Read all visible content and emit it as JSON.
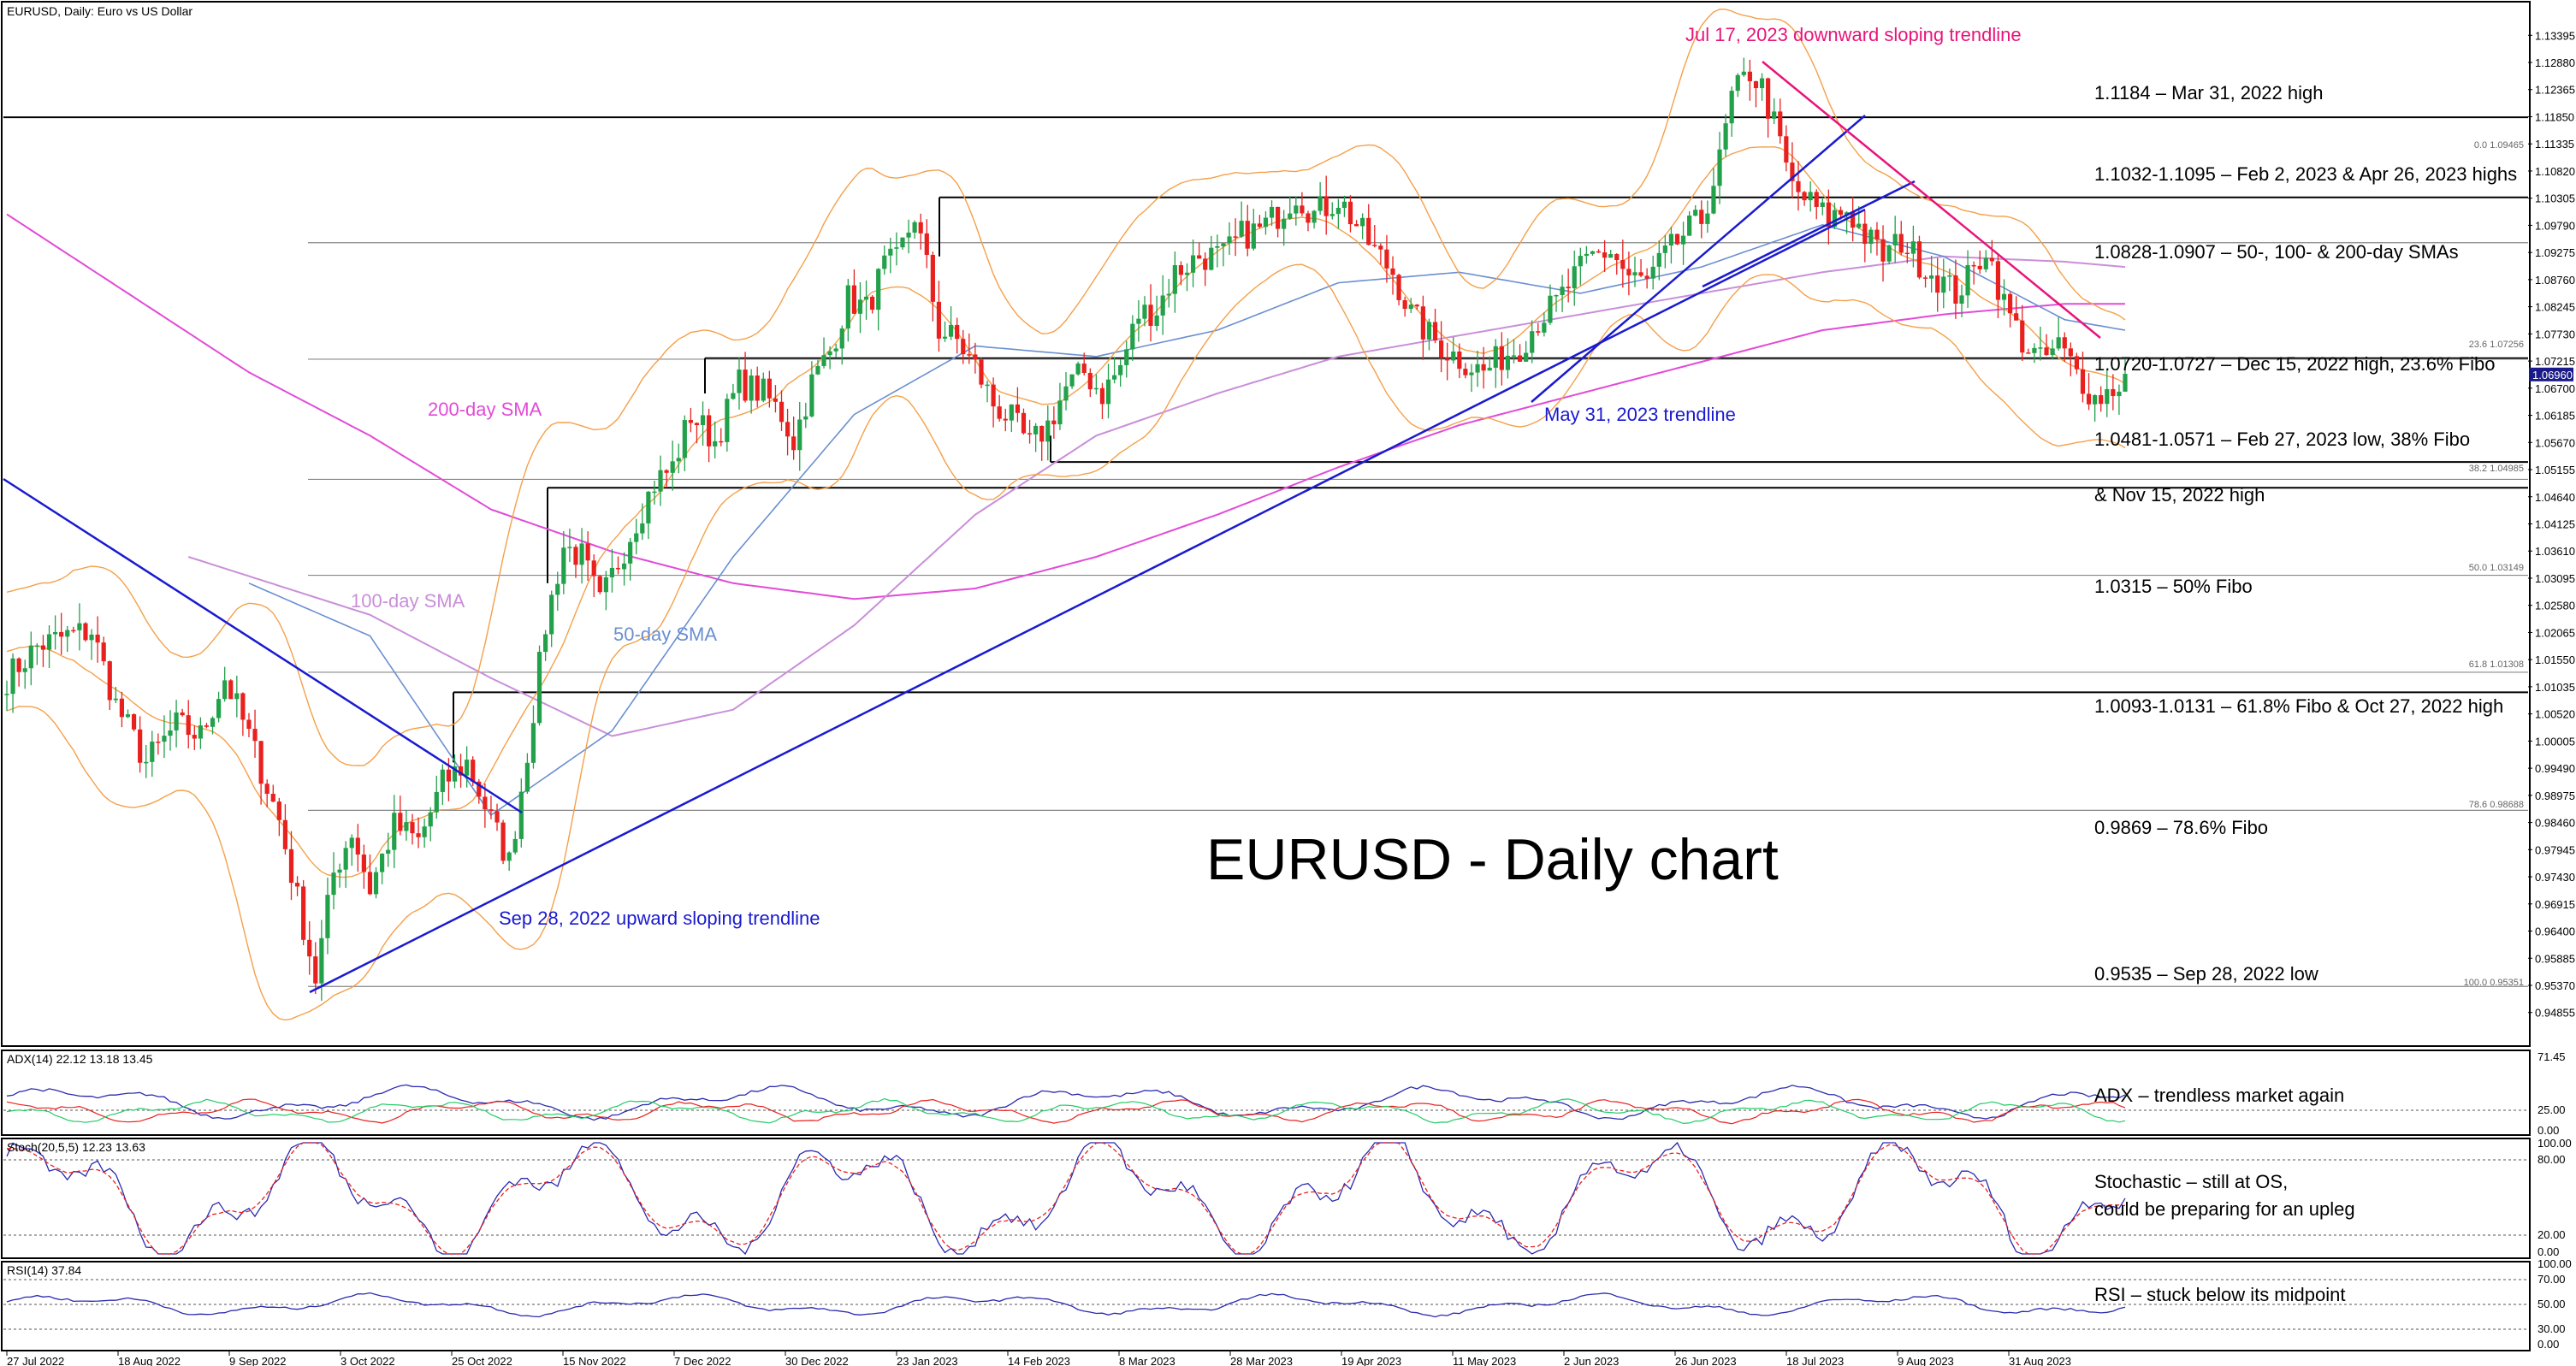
{
  "window": {
    "main_header": "EURUSD, Daily:  Euro vs US Dollar",
    "adx_header": "ADX(14) 22.12 13.18 13.45",
    "stoch_header": "Stoch(20,5,5) 12.23 13.63",
    "rsi_header": "RSI(14) 37.84",
    "title": "EURUSD - Daily chart"
  },
  "colors": {
    "candle_up": "#22a04a",
    "candle_down": "#e8211f",
    "bollinger": "#f5a04a",
    "sma50": "#6a8fd0",
    "sma100": "#c98fd9",
    "sma200": "#e24bd8",
    "trendline_up": "#1a1ad0",
    "trendline_down": "#e8147a",
    "adx_main": "#2a2ab0",
    "adx_plus": "#22cc66",
    "adx_minus": "#e8211f",
    "stoch_main": "#2a2ab0",
    "stoch_signal": "#e8211f",
    "rsi": "#2a2ab0"
  },
  "chart_data": {
    "type": "candlestick",
    "symbol": "EURUSD",
    "timeframe": "Daily",
    "ylim": [
      0.9425,
      1.14
    ],
    "price_axis_ticks": [
      "1.13395",
      "1.12880",
      "1.12365",
      "1.11850",
      "1.11335",
      "1.10820",
      "1.10305",
      "1.09790",
      "1.09275",
      "1.08760",
      "1.08245",
      "1.07730",
      "1.07215",
      "1.06700",
      "1.06185",
      "1.05670",
      "1.05155",
      "1.04640",
      "1.04125",
      "1.03610",
      "1.03095",
      "1.02580",
      "1.02065",
      "1.01550",
      "1.01035",
      "1.00520",
      "1.00005",
      "0.99490",
      "0.98975",
      "0.98460",
      "0.97945",
      "0.97430",
      "0.96915",
      "0.96400",
      "0.95885",
      "0.95370",
      "0.94855"
    ],
    "current_price": "1.06960",
    "x_axis_ticks": [
      "27 Jul 2022",
      "18 Aug 2022",
      "9 Sep 2022",
      "3 Oct 2022",
      "25 Oct 2022",
      "15 Nov 2022",
      "7 Dec 2022",
      "30 Dec 2022",
      "23 Jan 2023",
      "14 Feb 2023",
      "8 Mar 2023",
      "28 Mar 2023",
      "19 Apr 2023",
      "11 May 2023",
      "2 Jun 2023",
      "26 Jun 2023",
      "18 Jul 2023",
      "9 Aug 2023",
      "31 Aug 2023"
    ],
    "path_anchors": [
      [
        0,
        1.012
      ],
      [
        5,
        1.018
      ],
      [
        10,
        1.02
      ],
      [
        14,
        1.021
      ],
      [
        18,
        1.007
      ],
      [
        23,
        0.996
      ],
      [
        28,
        1.003
      ],
      [
        32,
        1.001
      ],
      [
        36,
        1.012
      ],
      [
        40,
        1.001
      ],
      [
        45,
        0.985
      ],
      [
        48,
        0.97
      ],
      [
        51,
        0.955
      ],
      [
        54,
        0.975
      ],
      [
        57,
        0.983
      ],
      [
        60,
        0.972
      ],
      [
        64,
        0.984
      ],
      [
        68,
        0.981
      ],
      [
        72,
        0.992
      ],
      [
        76,
        0.996
      ],
      [
        80,
        0.985
      ],
      [
        83,
        0.977
      ],
      [
        86,
        0.998
      ],
      [
        89,
        1.022
      ],
      [
        92,
        1.037
      ],
      [
        95,
        1.035
      ],
      [
        98,
        1.026
      ],
      [
        101,
        1.034
      ],
      [
        104,
        1.042
      ],
      [
        107,
        1.049
      ],
      [
        110,
        1.052
      ],
      [
        113,
        1.062
      ],
      [
        117,
        1.057
      ],
      [
        121,
        1.068
      ],
      [
        125,
        1.066
      ],
      [
        128,
        1.062
      ],
      [
        130,
        1.057
      ],
      [
        133,
        1.068
      ],
      [
        136,
        1.074
      ],
      [
        139,
        1.084
      ],
      [
        142,
        1.082
      ],
      [
        145,
        1.09
      ],
      [
        147,
        1.091
      ],
      [
        150,
        1.1
      ],
      [
        152,
        1.09
      ],
      [
        154,
        1.078
      ],
      [
        157,
        1.076
      ],
      [
        160,
        1.071
      ],
      [
        163,
        1.064
      ],
      [
        166,
        1.061
      ],
      [
        169,
        1.056
      ],
      [
        172,
        1.06
      ],
      [
        175,
        1.067
      ],
      [
        178,
        1.07
      ],
      [
        181,
        1.066
      ],
      [
        184,
        1.071
      ],
      [
        187,
        1.081
      ],
      [
        190,
        1.082
      ],
      [
        193,
        1.089
      ],
      [
        197,
        1.092
      ],
      [
        201,
        1.092
      ],
      [
        204,
        1.096
      ],
      [
        207,
        1.097
      ],
      [
        210,
        1.1
      ],
      [
        213,
        1.104
      ],
      [
        216,
        1.1
      ],
      [
        220,
        1.103
      ],
      [
        223,
        1.098
      ],
      [
        226,
        1.093
      ],
      [
        229,
        1.089
      ],
      [
        232,
        1.081
      ],
      [
        235,
        1.077
      ],
      [
        238,
        1.074
      ],
      [
        241,
        1.072
      ],
      [
        244,
        1.07
      ],
      [
        247,
        1.073
      ],
      [
        250,
        1.075
      ],
      [
        253,
        1.08
      ],
      [
        256,
        1.083
      ],
      [
        259,
        1.088
      ],
      [
        262,
        1.092
      ],
      [
        265,
        1.093
      ],
      [
        268,
        1.088
      ],
      [
        271,
        1.087
      ],
      [
        274,
        1.092
      ],
      [
        277,
        1.096
      ],
      [
        280,
        1.099
      ],
      [
        283,
        1.11
      ],
      [
        285,
        1.122
      ],
      [
        288,
        1.127
      ],
      [
        290,
        1.124
      ],
      [
        292,
        1.117
      ],
      [
        295,
        1.105
      ],
      [
        298,
        1.102
      ],
      [
        301,
        1.099
      ],
      [
        304,
        1.101
      ],
      [
        307,
        1.096
      ],
      [
        310,
        1.092
      ],
      [
        313,
        1.095
      ],
      [
        316,
        1.091
      ],
      [
        319,
        1.088
      ],
      [
        322,
        1.085
      ],
      [
        325,
        1.089
      ],
      [
        327,
        1.094
      ],
      [
        330,
        1.083
      ],
      [
        333,
        1.076
      ],
      [
        336,
        1.072
      ],
      [
        339,
        1.075
      ],
      [
        342,
        1.07
      ],
      [
        345,
        1.065
      ],
      [
        348,
        1.067
      ],
      [
        350,
        1.069
      ]
    ],
    "sma50": [
      [
        40,
        1.03
      ],
      [
        60,
        1.02
      ],
      [
        80,
        0.986
      ],
      [
        100,
        1.002
      ],
      [
        120,
        1.035
      ],
      [
        140,
        1.062
      ],
      [
        160,
        1.075
      ],
      [
        180,
        1.073
      ],
      [
        200,
        1.078
      ],
      [
        220,
        1.087
      ],
      [
        240,
        1.089
      ],
      [
        260,
        1.085
      ],
      [
        280,
        1.09
      ],
      [
        300,
        1.098
      ],
      [
        320,
        1.092
      ],
      [
        340,
        1.08
      ],
      [
        350,
        1.078
      ]
    ],
    "sma100": [
      [
        30,
        1.035
      ],
      [
        60,
        1.024
      ],
      [
        80,
        1.012
      ],
      [
        100,
        1.001
      ],
      [
        120,
        1.006
      ],
      [
        140,
        1.022
      ],
      [
        160,
        1.043
      ],
      [
        180,
        1.058
      ],
      [
        200,
        1.066
      ],
      [
        220,
        1.073
      ],
      [
        240,
        1.077
      ],
      [
        260,
        1.081
      ],
      [
        280,
        1.085
      ],
      [
        300,
        1.089
      ],
      [
        320,
        1.092
      ],
      [
        340,
        1.091
      ],
      [
        350,
        1.09
      ]
    ],
    "sma200": [
      [
        0,
        1.1
      ],
      [
        20,
        1.085
      ],
      [
        40,
        1.07
      ],
      [
        60,
        1.058
      ],
      [
        80,
        1.044
      ],
      [
        100,
        1.036
      ],
      [
        120,
        1.03
      ],
      [
        140,
        1.027
      ],
      [
        160,
        1.029
      ],
      [
        180,
        1.035
      ],
      [
        200,
        1.043
      ],
      [
        220,
        1.052
      ],
      [
        240,
        1.06
      ],
      [
        260,
        1.066
      ],
      [
        280,
        1.072
      ],
      [
        300,
        1.078
      ],
      [
        320,
        1.081
      ],
      [
        340,
        1.083
      ],
      [
        350,
        1.083
      ]
    ],
    "horizontal_levels": [
      {
        "price": 1.1184,
        "label": "1.1184 – Mar 31, 2022 high"
      },
      {
        "price": 1.1032,
        "label": "1.1032-1.1095 – Feb 2, 2023 & Apr 26, 2023 highs"
      },
      {
        "price": 1.0727,
        "label": "1.0720-1.0727 – Dec 15, 2022 high, 23.6% Fibo"
      },
      {
        "price": 1.053,
        "label": "1.0481-1.0571 – Feb 27, 2023 low, 38% Fibo"
      },
      {
        "price": 1.0481,
        "label": "& Nov 15, 2022 high"
      },
      {
        "price": 1.0093,
        "label": "1.0093-1.0131 – 61.8% Fibo & Oct 27, 2022 high"
      }
    ],
    "fibo_levels": [
      {
        "price": 1.0946,
        "tag": "0.0 1.09465"
      },
      {
        "price": 1.0725,
        "tag": "23.6 1.07256"
      },
      {
        "price": 1.0497,
        "tag": "38.2 1.04985"
      },
      {
        "price": 1.0315,
        "tag": "50.0 1.03149",
        "label": "1.0315 – 50% Fibo"
      },
      {
        "price": 1.0131,
        "tag": "61.8 1.01308"
      },
      {
        "price": 0.9869,
        "tag": "78.6 0.98688",
        "label": "0.9869 – 78.6% Fibo"
      },
      {
        "price": 0.9535,
        "tag": "100.0 0.95351",
        "label": "0.9535 – Sep 28, 2022 low"
      }
    ],
    "side_labels": [
      "1.0828-1.0907 – 50-, 100- & 200-day SMAs"
    ],
    "annotations": {
      "sma200": "200-day SMA",
      "sma100": "100-day SMA",
      "sma50": "50-day SMA",
      "trend_sep": "Sep 28, 2022 upward sloping trendline",
      "trend_may": "May 31, 2023 trendline",
      "trend_jul": "Jul 17, 2023 downward sloping trendline"
    },
    "adx": {
      "values": [
        "22.12",
        "13.18",
        "13.45"
      ],
      "ticks": [
        "71.45",
        "25.00",
        "0.00"
      ],
      "note": "ADX – trendless market again"
    },
    "stochastic": {
      "values": [
        "12.23",
        "13.63"
      ],
      "ticks": [
        "80.00",
        "20.00",
        "0.00",
        "100.00"
      ],
      "note1": "Stochastic – still at OS,",
      "note2": "could be preparing for an upleg"
    },
    "rsi": {
      "value": "37.84",
      "ticks": [
        "100.00",
        "70.00",
        "50.00",
        "30.00",
        "0.00"
      ],
      "note": "RSI – stuck below its midpoint"
    }
  }
}
